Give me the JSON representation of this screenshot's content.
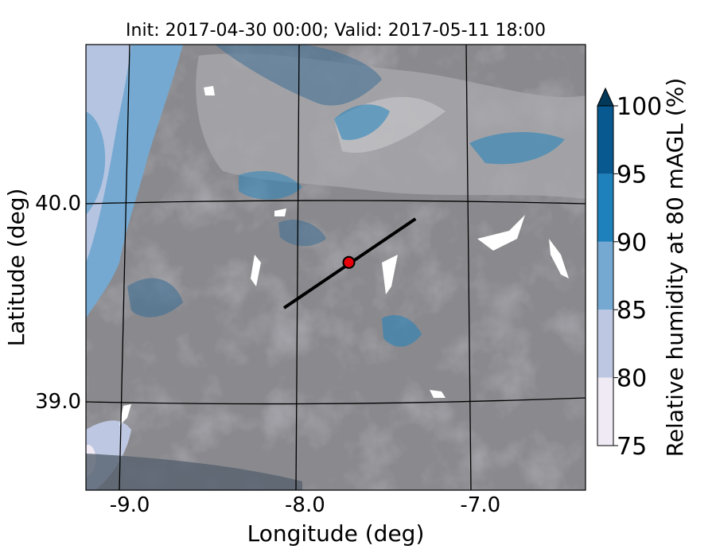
{
  "chart_data": {
    "type": "heatmap",
    "title": "Init: 2017-04-30 00:00; Valid: 2017-05-11 18:00",
    "xlabel": "Longitude (deg)",
    "ylabel": "Latitude (deg)",
    "xticks": [
      "-9.0",
      "-8.0",
      "-7.0"
    ],
    "yticks": [
      "40.0",
      "39.0"
    ],
    "xlim": [
      -9.25,
      -6.4
    ],
    "ylim": [
      38.55,
      40.8
    ],
    "colorbar": {
      "label": "Relative humidity at 80 mAGL (%)",
      "ticks": [
        "75",
        "80",
        "85",
        "90",
        "95",
        "100"
      ],
      "levels": [
        75,
        80,
        85,
        90,
        95,
        100
      ],
      "colors": [
        "#efeaf3",
        "#bdc7e1",
        "#75a9d1",
        "#1f81bb",
        "#075990",
        "#023858"
      ],
      "extend": "max"
    },
    "transect": {
      "start": {
        "lon": -8.12,
        "lat": 39.47
      },
      "end": {
        "lon": -7.37,
        "lat": 39.92
      }
    },
    "marker": {
      "lon": -7.75,
      "lat": 39.7,
      "color": "#e8000b"
    }
  }
}
